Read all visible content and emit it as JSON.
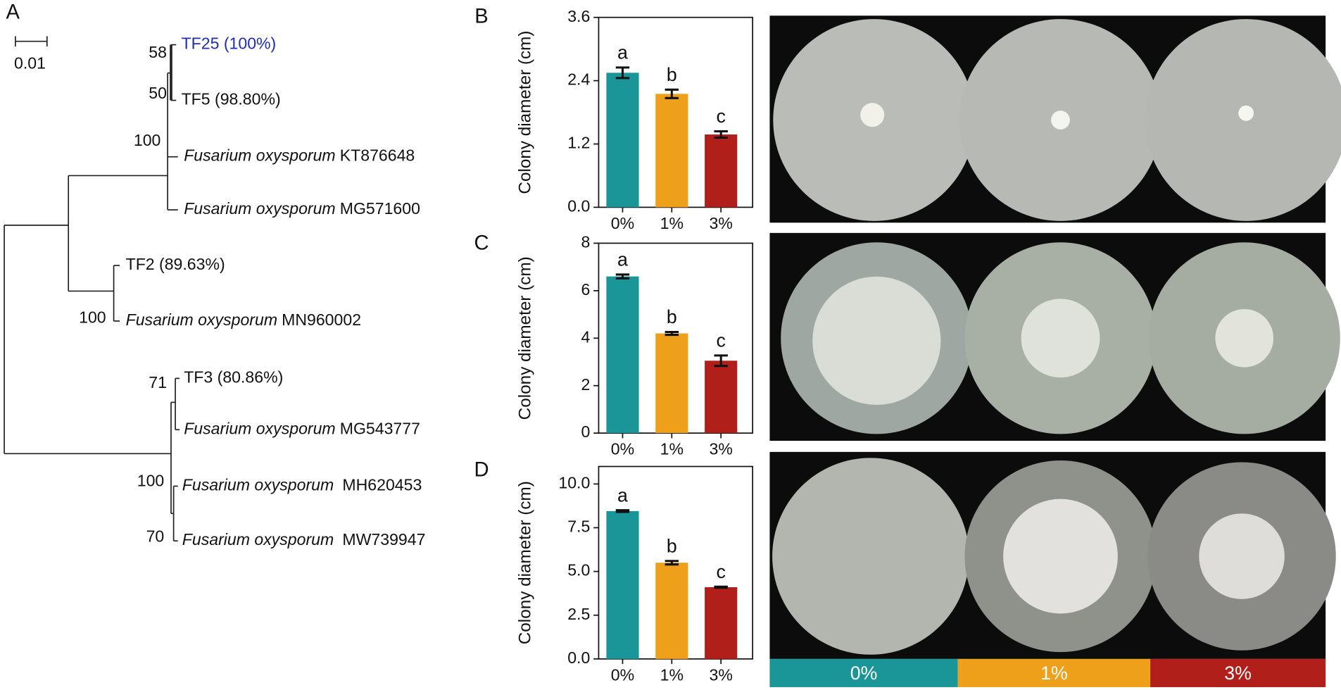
{
  "panels": [
    "A",
    "B",
    "C",
    "D"
  ],
  "tree": {
    "scale_label": "0.01",
    "leaves": [
      {
        "label": "TF25 (100%)"
      },
      {
        "label": "TF5 (98.80%)"
      },
      {
        "species": "Fusarium oxysporum",
        "accession": "KT876648"
      },
      {
        "species": "Fusarium oxysporum",
        "accession": "MG571600"
      },
      {
        "label": "TF2 (89.63%)"
      },
      {
        "species": "Fusarium oxysporum",
        "accession": "MN960002"
      },
      {
        "label": "TF3 (80.86%)"
      },
      {
        "species": "Fusarium oxysporum",
        "accession": "MG543777"
      },
      {
        "species": "Fusarium oxysporum",
        "accession": "MH620453"
      },
      {
        "species": "Fusarium oxysporum",
        "accession": "MW739947"
      }
    ],
    "bootstraps": [
      "58",
      "50",
      "100",
      "100",
      "71",
      "100",
      "70"
    ]
  },
  "chart_data": [
    {
      "type": "bar",
      "ylabel": "Colony diameter (cm)",
      "categories": [
        "0%",
        "1%",
        "3%"
      ],
      "values": [
        2.55,
        2.15,
        1.38
      ],
      "errors": [
        0.1,
        0.08,
        0.06
      ],
      "annotations": [
        "a",
        "b",
        "c"
      ],
      "colors": [
        "#1a9698",
        "#efa01b",
        "#b01f1a"
      ],
      "ylim": [
        0,
        3.6
      ],
      "yticks": [
        {
          "value": 0,
          "label": "0.0"
        },
        1.2,
        2.4,
        3.6
      ]
    },
    {
      "type": "bar",
      "ylabel": "Colony diameter (cm)",
      "categories": [
        "0%",
        "1%",
        "3%"
      ],
      "values": [
        6.6,
        4.2,
        3.05
      ],
      "errors": [
        0.08,
        0.06,
        0.22
      ],
      "annotations": [
        "a",
        "b",
        "c"
      ],
      "colors": [
        "#1a9698",
        "#efa01b",
        "#b01f1a"
      ],
      "ylim": [
        0,
        8
      ],
      "yticks": [
        0,
        2,
        4,
        6,
        8
      ]
    },
    {
      "type": "bar",
      "ylabel": "Colony diameter (cm)",
      "categories": [
        "0%",
        "1%",
        "3%"
      ],
      "values": [
        8.45,
        5.5,
        4.1
      ],
      "errors": [
        0.05,
        0.1,
        0.03
      ],
      "annotations": [
        "a",
        "b",
        "c"
      ],
      "colors": [
        "#1a9698",
        "#efa01b",
        "#b01f1a"
      ],
      "ylim": [
        0,
        11
      ],
      "yticks": [
        {
          "value": 0,
          "label": "0.0"
        },
        2.5,
        {
          "value": 5,
          "label": "5.0"
        },
        7.5,
        {
          "value": 10,
          "label": "10.0"
        }
      ]
    }
  ]
}
